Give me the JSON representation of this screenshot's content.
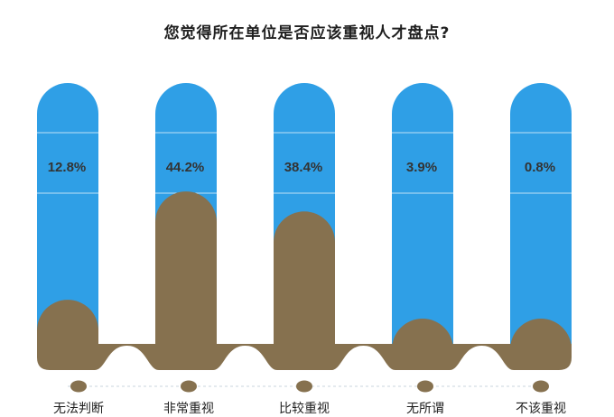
{
  "chart_data": {
    "type": "bar",
    "title": "您觉得所在单位是否应该重视人才盘点?",
    "categories": [
      "无法判断",
      "非常重视",
      "比较重视",
      "无所谓",
      "不该重视"
    ],
    "values": [
      12.8,
      44.2,
      38.4,
      3.9,
      0.8
    ],
    "value_labels": [
      "12.8%",
      "44.2%",
      "38.4%",
      "3.9%",
      "0.8%"
    ],
    "ylim": [
      0,
      100
    ],
    "xlabel": "",
    "ylabel": "",
    "grid": false,
    "legend": "none",
    "colors": {
      "capsule": "#2f9fe6",
      "fill": "#86714f",
      "divider": "#bfe0f6",
      "marker": "#86714f",
      "axis_line": "#c8d4dc",
      "label_text": "#1f1f1f",
      "value_text": "#333333"
    }
  }
}
